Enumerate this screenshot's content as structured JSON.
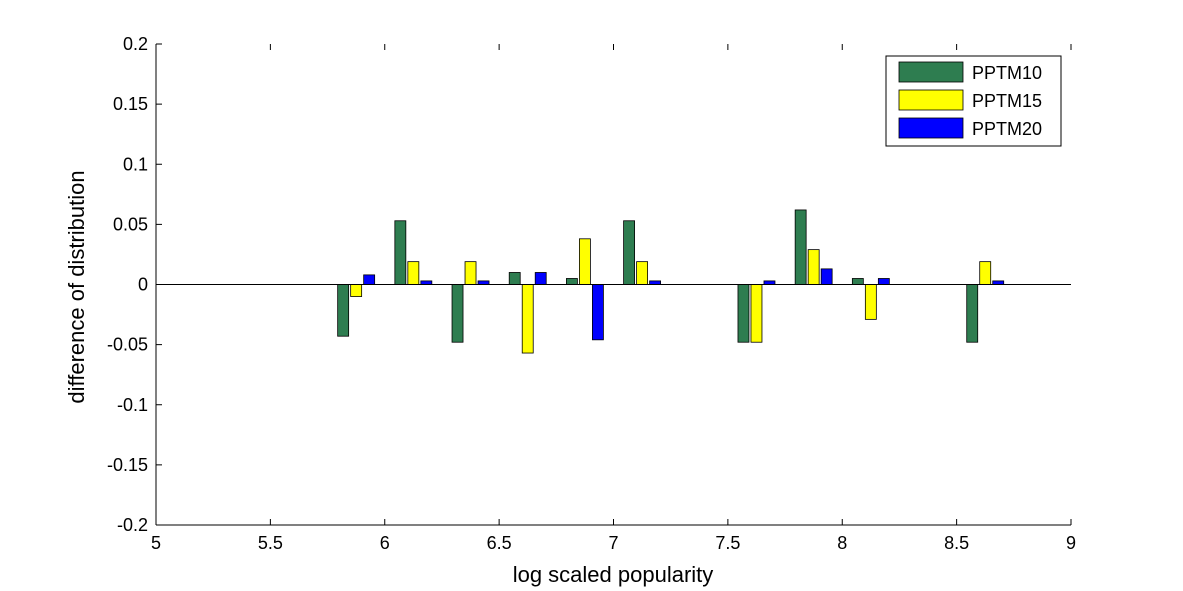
{
  "chart_data": {
    "type": "bar",
    "title": "",
    "xlabel": "log scaled popularity",
    "ylabel": "difference of distribution",
    "xlim": [
      5,
      9
    ],
    "ylim": [
      -0.2,
      0.2
    ],
    "xticks": [
      "5",
      "5.5",
      "6",
      "6.5",
      "7",
      "7.5",
      "8",
      "8.5",
      "9"
    ],
    "yticks": [
      "-0.2",
      "-0.15",
      "-0.1",
      "-0.05",
      "0",
      "0.05",
      "0.1",
      "0.15",
      "0.2"
    ],
    "x": [
      5.875,
      6.125,
      6.375,
      6.625,
      6.875,
      7.125,
      7.625,
      7.875,
      8.125,
      8.625
    ],
    "series": [
      {
        "name": "PPTM10",
        "color": "#2e7d50",
        "values": [
          -0.043,
          0.053,
          -0.048,
          0.01,
          0.005,
          0.053,
          -0.048,
          0.062,
          0.005,
          -0.048
        ]
      },
      {
        "name": "PPTM15",
        "color": "#ffff00",
        "values": [
          -0.01,
          0.019,
          0.019,
          -0.057,
          0.038,
          0.019,
          -0.048,
          0.029,
          -0.029,
          0.019
        ]
      },
      {
        "name": "PPTM20",
        "color": "#0000ff",
        "values": [
          0.008,
          0.003,
          0.003,
          0.01,
          -0.046,
          0.003,
          0.003,
          0.013,
          0.005,
          0.003
        ]
      }
    ],
    "legend_position": "top-right",
    "grid": false
  }
}
